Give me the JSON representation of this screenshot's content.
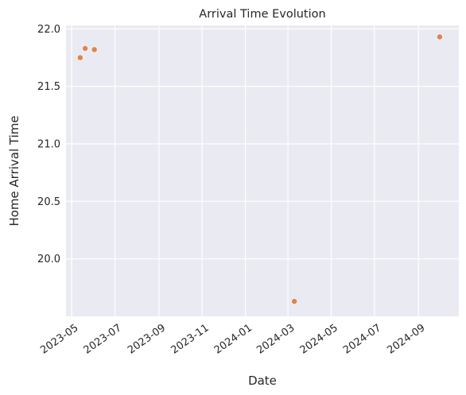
{
  "chart_data": {
    "type": "scatter",
    "title": "Arrival Time Evolution",
    "xlabel": "Date",
    "ylabel": "Home Arrival Time",
    "x_axis_type": "date",
    "xlim": [
      "2023-04-23",
      "2024-10-28"
    ],
    "ylim": [
      19.5,
      22.03
    ],
    "x_ticks": [
      "2023-05-01",
      "2023-07-01",
      "2023-09-01",
      "2023-11-01",
      "2024-01-01",
      "2024-03-01",
      "2024-05-01",
      "2024-07-01",
      "2024-09-01"
    ],
    "x_tick_labels": [
      "2023-05",
      "2023-07",
      "2023-09",
      "2023-11",
      "2024-01",
      "2024-03",
      "2024-05",
      "2024-07",
      "2024-09"
    ],
    "y_ticks": [
      20.0,
      20.5,
      21.0,
      21.5,
      22.0
    ],
    "y_tick_labels": [
      "20.0",
      "20.5",
      "21.0",
      "21.5",
      "22.0"
    ],
    "grid": true,
    "series": [
      {
        "color": "#dd8452",
        "points": [
          {
            "x": "2023-05-13",
            "y": 21.75
          },
          {
            "x": "2023-05-20",
            "y": 21.83
          },
          {
            "x": "2023-06-02",
            "y": 21.82
          },
          {
            "x": "2024-03-10",
            "y": 19.63
          },
          {
            "x": "2024-10-01",
            "y": 21.93
          }
        ]
      }
    ],
    "background_color": "#eaeaf2",
    "grid_color": "#ffffff"
  }
}
